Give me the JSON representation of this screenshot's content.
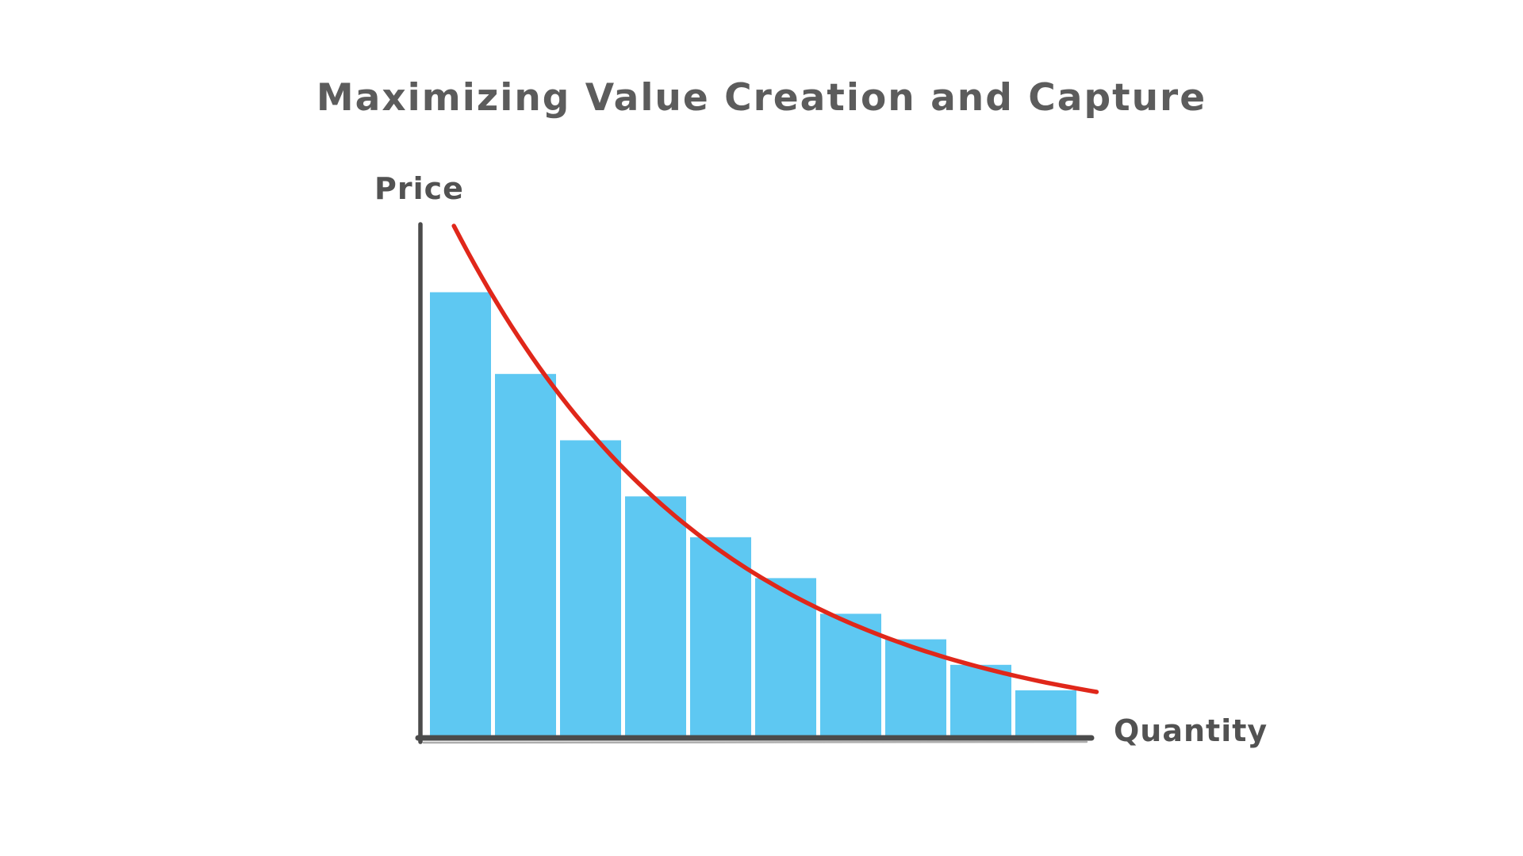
{
  "chart_data": {
    "type": "bar",
    "title": "Maximizing Value Creation and Capture",
    "xlabel": "Quantity",
    "ylabel": "Price",
    "ylim": [
      0,
      100
    ],
    "gridlines": false,
    "tick_labels": false,
    "style": "hand-drawn sketch",
    "bars": {
      "count": 10,
      "values": [
        87,
        71,
        58,
        47,
        39,
        31,
        24,
        19,
        14,
        9
      ],
      "color": "#5ec8f2"
    },
    "curve": {
      "shape": "exponential-decay",
      "color": "#e0271a",
      "start": {
        "x": 0.05,
        "value": 100
      },
      "end": {
        "x": 1.01,
        "value": 8.7
      }
    },
    "axes": {
      "color": "#4b4b4b"
    }
  }
}
